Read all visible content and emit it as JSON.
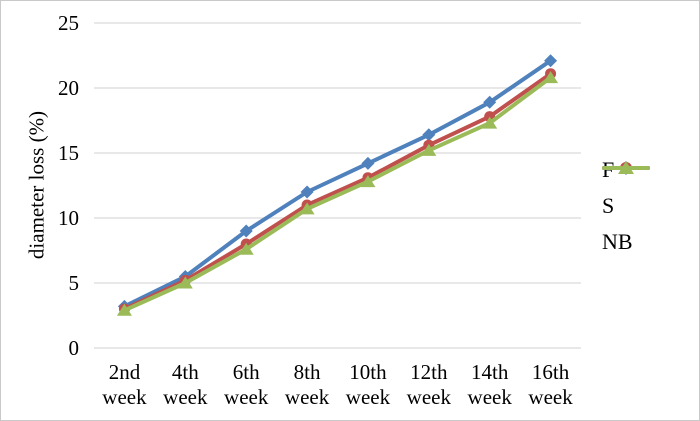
{
  "figure": {
    "background": "#ffffff",
    "border_color": "#c9c9c9"
  },
  "chart_data": {
    "type": "line",
    "title": "",
    "xlabel": "",
    "ylabel": "diameter loss (%)",
    "categories": [
      "2nd week",
      "4th week",
      "6th week",
      "8th week",
      "10th week",
      "12th week",
      "14th week",
      "16th week"
    ],
    "series": [
      {
        "name": "F",
        "marker": "diamond",
        "color": "#4F81BD",
        "values": [
          3.2,
          5.5,
          9.0,
          12.0,
          14.2,
          16.4,
          18.9,
          22.1
        ]
      },
      {
        "name": "S",
        "marker": "circle",
        "color": "#C0504D",
        "values": [
          3.0,
          5.2,
          8.0,
          11.0,
          13.1,
          15.6,
          17.8,
          21.1
        ]
      },
      {
        "name": "NB",
        "marker": "triangle",
        "color": "#9BBB59",
        "values": [
          2.9,
          5.0,
          7.6,
          10.7,
          12.8,
          15.2,
          17.3,
          20.8
        ]
      }
    ],
    "ylim": [
      0,
      25
    ],
    "yticks": [
      0,
      5,
      10,
      15,
      20,
      25
    ],
    "grid": true,
    "gridline_color": "#d9d9d9",
    "legend_position": "right",
    "text_color": "#000000"
  }
}
